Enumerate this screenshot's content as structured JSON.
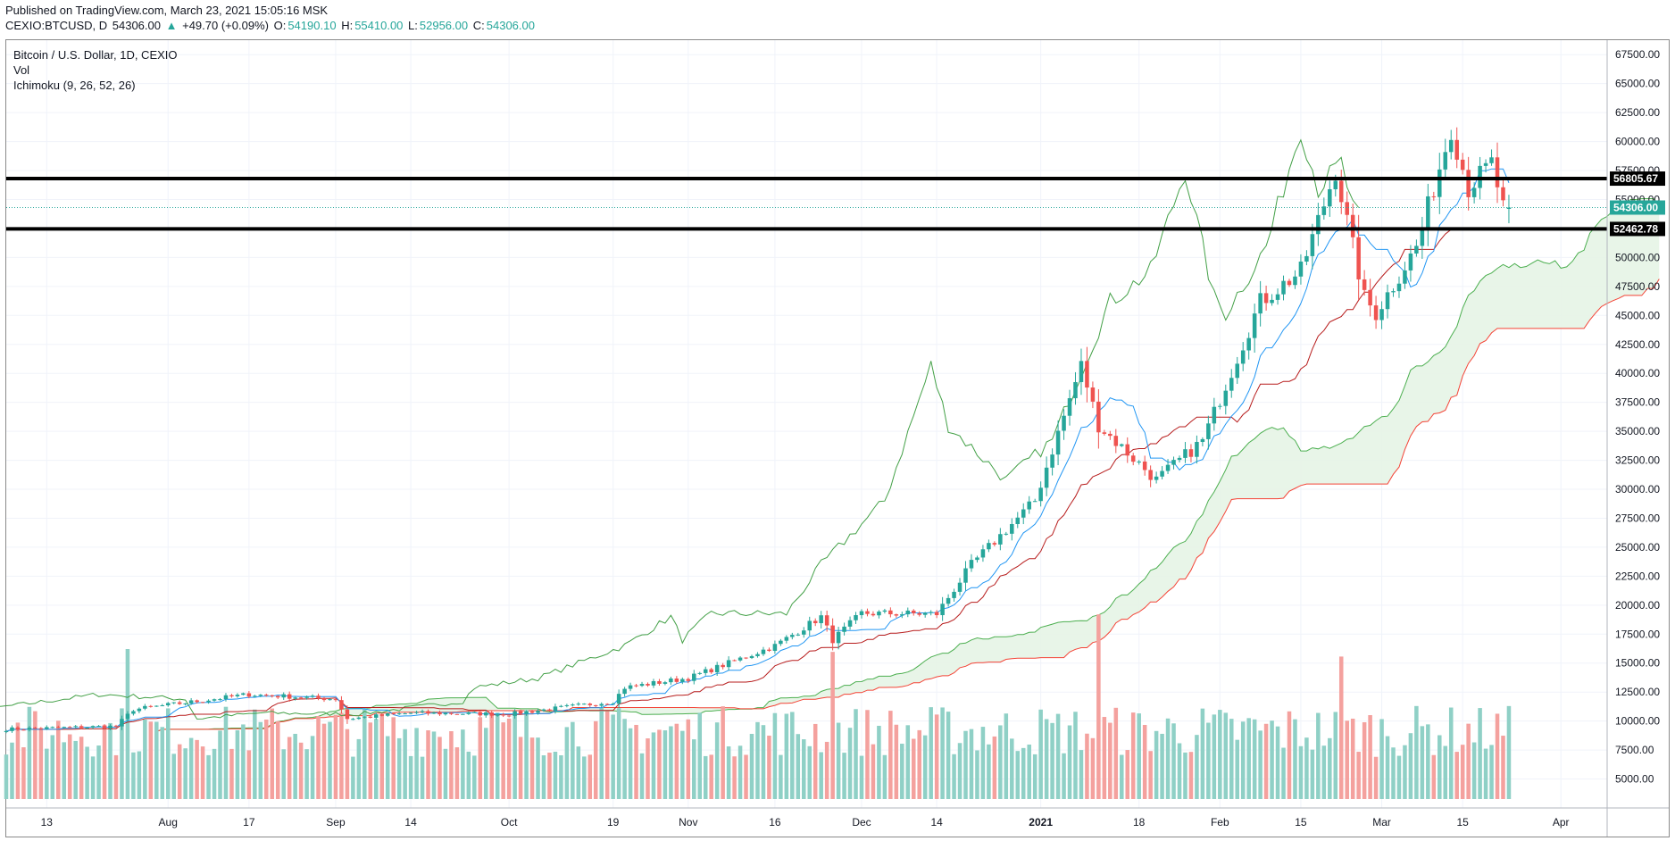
{
  "header": {
    "published": "Published on TradingView.com, March 23, 2021 15:05:16 MSK",
    "symbol": "CEXIO:BTCUSD, D",
    "last": "54306.00",
    "change": "+49.70 (+0.09%)",
    "o_label": "O:",
    "o": "54190.10",
    "h_label": "H:",
    "h": "55410.00",
    "l_label": "L:",
    "l": "52956.00",
    "c_label": "C:",
    "c": "54306.00"
  },
  "legend": {
    "title": "Bitcoin / U.S. Dollar, 1D, CEXIO",
    "vol": "Vol",
    "ichimoku": "Ichimoku (9, 26, 52, 26)"
  },
  "colors": {
    "up": "#26a69a",
    "down": "#ef5350",
    "vol_up": "#8fd0c6",
    "vol_down": "#f4a19e",
    "tenkan": "#2196f3",
    "kijun": "#b71c1c",
    "chikou": "#43a047",
    "span_a": "#4caf50",
    "span_b": "#f44336",
    "cloud": "#e6f4e6",
    "level": "#000000"
  },
  "chart_data": {
    "type": "candlestick",
    "ylim": [
      2500,
      68750
    ],
    "y_ticks": [
      "5000.00",
      "7500.00",
      "10000.00",
      "12500.00",
      "15000.00",
      "17500.00",
      "20000.00",
      "22500.00",
      "25000.00",
      "27500.00",
      "30000.00",
      "32500.00",
      "35000.00",
      "37500.00",
      "40000.00",
      "42500.00",
      "45000.00",
      "47500.00",
      "50000.00",
      "52500.00",
      "55000.00",
      "57500.00",
      "60000.00",
      "62500.00",
      "65000.00",
      "67500.00"
    ],
    "x_ticks": [
      "13",
      "Aug",
      "17",
      "Sep",
      "14",
      "Oct",
      "19",
      "Nov",
      "16",
      "Dec",
      "14",
      "2021",
      "18",
      "Feb",
      "15",
      "Mar",
      "15",
      "Apr"
    ],
    "x_tick_dates": [
      "2020-07-13",
      "2020-08-03",
      "2020-08-17",
      "2020-09-01",
      "2020-09-14",
      "2020-10-01",
      "2020-10-19",
      "2020-11-01",
      "2020-11-16",
      "2020-12-01",
      "2020-12-14",
      "2021-01-01",
      "2021-01-18",
      "2021-02-01",
      "2021-02-15",
      "2021-03-01",
      "2021-03-15",
      "2021-04-01"
    ],
    "horizontal_levels": [
      {
        "value": 56805.67,
        "label": "56805.67"
      },
      {
        "value": 52462.78,
        "label": "52462.78"
      }
    ],
    "last_price": {
      "value": 54306.0,
      "label": "54306.00"
    },
    "close_anchors": [
      {
        "date": "2020-07-06",
        "close": 9300
      },
      {
        "date": "2020-07-25",
        "close": 9550
      },
      {
        "date": "2020-07-28",
        "close": 11000
      },
      {
        "date": "2020-08-17",
        "close": 12300
      },
      {
        "date": "2020-09-01",
        "close": 11900
      },
      {
        "date": "2020-09-03",
        "close": 10200
      },
      {
        "date": "2020-09-14",
        "close": 10700
      },
      {
        "date": "2020-10-01",
        "close": 10600
      },
      {
        "date": "2020-10-19",
        "close": 11700
      },
      {
        "date": "2020-10-21",
        "close": 12900
      },
      {
        "date": "2020-11-01",
        "close": 13700
      },
      {
        "date": "2020-11-16",
        "close": 16500
      },
      {
        "date": "2020-11-24",
        "close": 19000
      },
      {
        "date": "2020-11-26",
        "close": 17000
      },
      {
        "date": "2020-12-01",
        "close": 19300
      },
      {
        "date": "2020-12-14",
        "close": 19250
      },
      {
        "date": "2020-12-20",
        "close": 23500
      },
      {
        "date": "2020-12-31",
        "close": 29000
      },
      {
        "date": "2021-01-08",
        "close": 40700
      },
      {
        "date": "2021-01-11",
        "close": 35500
      },
      {
        "date": "2021-01-21",
        "close": 30800
      },
      {
        "date": "2021-01-29",
        "close": 34200
      },
      {
        "date": "2021-02-08",
        "close": 46200
      },
      {
        "date": "2021-02-15",
        "close": 48800
      },
      {
        "date": "2021-02-21",
        "close": 57500
      },
      {
        "date": "2021-02-26",
        "close": 46500
      },
      {
        "date": "2021-02-28",
        "close": 45200
      },
      {
        "date": "2021-03-07",
        "close": 50900
      },
      {
        "date": "2021-03-13",
        "close": 61200
      },
      {
        "date": "2021-03-16",
        "close": 56000
      },
      {
        "date": "2021-03-20",
        "close": 58100
      },
      {
        "date": "2021-03-22",
        "close": 54260
      },
      {
        "date": "2021-03-23",
        "close": 54306
      }
    ],
    "volume_spikes": [
      {
        "date": "2020-07-27",
        "value": 16000
      },
      {
        "date": "2020-11-26",
        "value": 15700
      },
      {
        "date": "2021-01-11",
        "value": 19700
      },
      {
        "date": "2021-02-22",
        "value": 15200
      }
    ]
  }
}
